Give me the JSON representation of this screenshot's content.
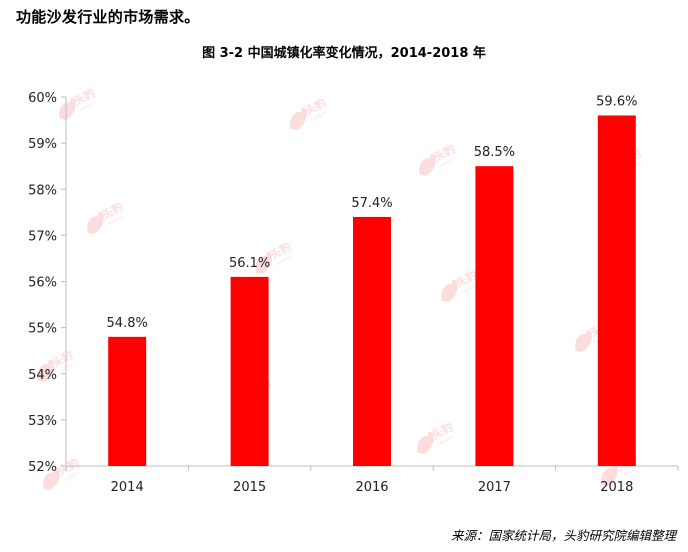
{
  "intro_text": "功能沙发行业的市场需求。",
  "source_text": "来源：国家统计局，头豹研究院编辑整理",
  "watermark": {
    "label": "头豹",
    "sub": "LeadLeo",
    "icon": "leopard-logo-icon",
    "color": "#e60000"
  },
  "chart_data": {
    "type": "bar",
    "title": "图  3-2 中国城镇化率变化情况，2014-2018 年",
    "xlabel": "",
    "ylabel": "",
    "categories": [
      "2014",
      "2015",
      "2016",
      "2017",
      "2018"
    ],
    "values": [
      54.8,
      56.1,
      57.4,
      58.5,
      59.6
    ],
    "value_labels": [
      "54.8%",
      "56.1%",
      "57.4%",
      "58.5%",
      "59.6%"
    ],
    "ylim": [
      52,
      60
    ],
    "yticks": [
      52,
      53,
      54,
      55,
      56,
      57,
      58,
      59,
      60
    ],
    "ytick_labels": [
      "52%",
      "53%",
      "54%",
      "55%",
      "56%",
      "57%",
      "58%",
      "59%",
      "60%"
    ],
    "bar_color": "#ff0000",
    "grid": false,
    "legend": "none"
  }
}
